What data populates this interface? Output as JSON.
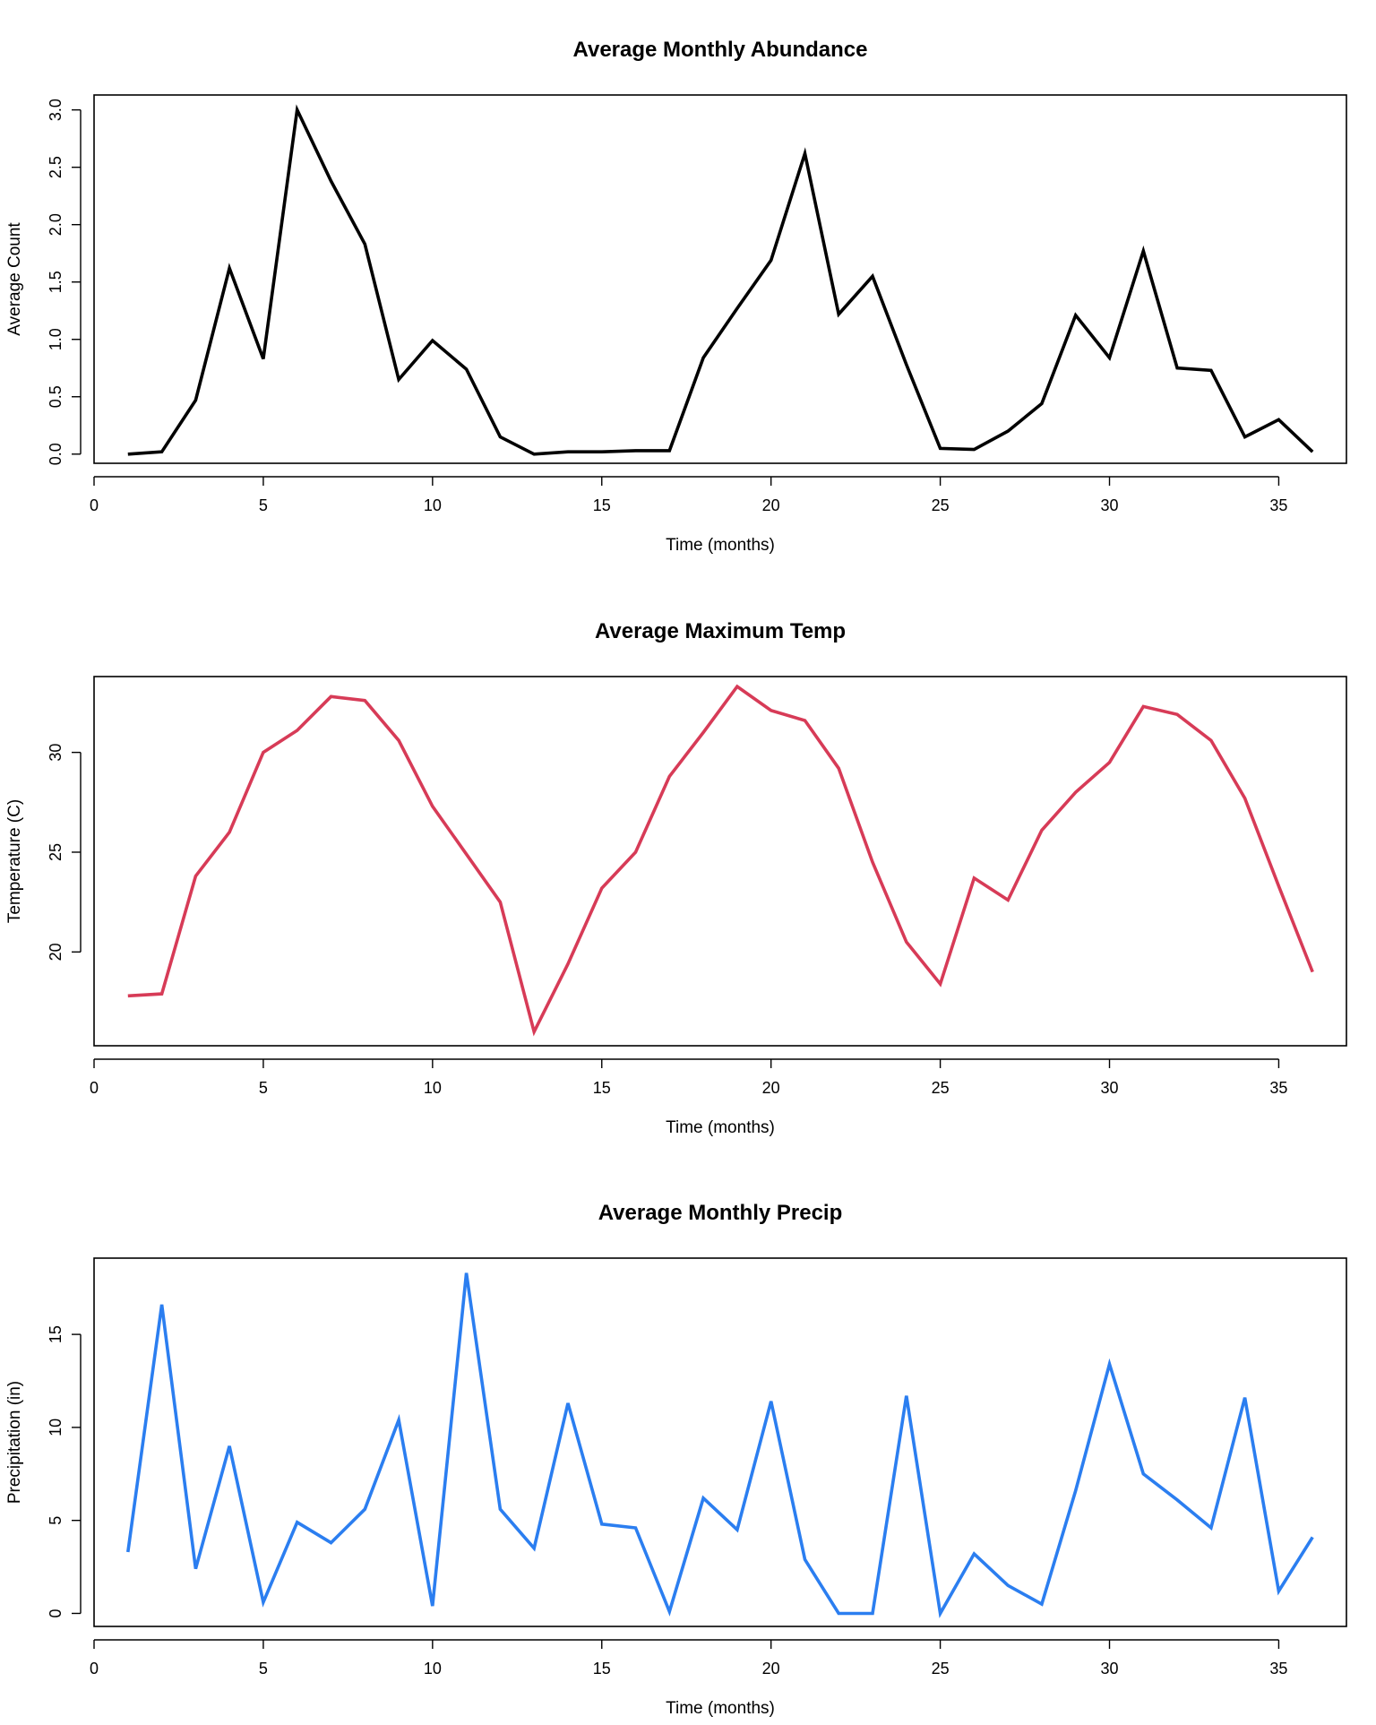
{
  "chart_data": [
    {
      "type": "line",
      "title": "Average Monthly Abundance",
      "xlabel": "Time (months)",
      "ylabel": "Average Count",
      "color": "#000000",
      "xlim": [
        0,
        37
      ],
      "ylim": [
        -0.08,
        3.13
      ],
      "xticks": [
        0,
        5,
        10,
        15,
        20,
        25,
        30,
        35
      ],
      "yticks": [
        0.0,
        0.5,
        1.0,
        1.5,
        2.0,
        2.5,
        3.0
      ],
      "ytick_labels": [
        "0.0",
        "0.5",
        "1.0",
        "1.5",
        "2.0",
        "2.5",
        "3.0"
      ],
      "ytick_rotated": true,
      "x": [
        1,
        2,
        3,
        4,
        5,
        6,
        7,
        8,
        9,
        10,
        11,
        12,
        13,
        14,
        15,
        16,
        17,
        18,
        19,
        20,
        21,
        22,
        23,
        24,
        25,
        26,
        27,
        28,
        29,
        30,
        31,
        32,
        33,
        34,
        35,
        36
      ],
      "y": [
        0.0,
        0.02,
        0.47,
        1.62,
        0.83,
        3.0,
        2.38,
        1.83,
        0.65,
        0.99,
        0.74,
        0.15,
        0.0,
        0.02,
        0.02,
        0.03,
        0.03,
        0.84,
        1.27,
        1.69,
        2.62,
        1.22,
        1.55,
        0.78,
        0.05,
        0.04,
        0.2,
        0.44,
        1.21,
        0.84,
        1.77,
        0.75,
        0.73,
        0.15,
        0.3,
        0.02
      ]
    },
    {
      "type": "line",
      "title": "Average Maximum Temp",
      "xlabel": "Time (months)",
      "ylabel": "Temperature (C)",
      "color": "#d73b57",
      "xlim": [
        0,
        37
      ],
      "ylim": [
        15.3,
        33.8
      ],
      "xticks": [
        0,
        5,
        10,
        15,
        20,
        25,
        30,
        35
      ],
      "yticks": [
        20,
        25,
        30
      ],
      "ytick_labels": [
        "20",
        "25",
        "30"
      ],
      "ytick_rotated": true,
      "x": [
        1,
        2,
        3,
        4,
        5,
        6,
        7,
        8,
        9,
        10,
        11,
        12,
        13,
        14,
        15,
        16,
        17,
        18,
        19,
        20,
        21,
        22,
        23,
        24,
        25,
        26,
        27,
        28,
        29,
        30,
        31,
        32,
        33,
        34,
        35,
        36
      ],
      "y": [
        17.8,
        17.9,
        23.8,
        26.0,
        30.0,
        31.1,
        32.8,
        32.6,
        30.6,
        27.3,
        24.9,
        22.5,
        16.0,
        19.4,
        23.2,
        25.0,
        28.8,
        31.0,
        33.3,
        32.1,
        31.6,
        29.2,
        24.5,
        20.5,
        18.4,
        23.7,
        22.6,
        26.1,
        28.0,
        29.5,
        32.3,
        31.9,
        30.6,
        27.7,
        23.3,
        19.0
      ]
    },
    {
      "type": "line",
      "title": "Average Monthly Precip",
      "xlabel": "Time (months)",
      "ylabel": "Precipitation (in)",
      "color": "#2b7ef0",
      "xlim": [
        0,
        37
      ],
      "ylim": [
        -0.7,
        19.1
      ],
      "xticks": [
        0,
        5,
        10,
        15,
        20,
        25,
        30,
        35
      ],
      "yticks": [
        0,
        5,
        10,
        15
      ],
      "ytick_labels": [
        "0",
        "5",
        "10",
        "15"
      ],
      "ytick_rotated": true,
      "x": [
        1,
        2,
        3,
        4,
        5,
        6,
        7,
        8,
        9,
        10,
        11,
        12,
        13,
        14,
        15,
        16,
        17,
        18,
        19,
        20,
        21,
        22,
        23,
        24,
        25,
        26,
        27,
        28,
        29,
        30,
        31,
        32,
        33,
        34,
        35,
        36
      ],
      "y": [
        3.3,
        16.6,
        2.4,
        9.0,
        0.6,
        4.9,
        3.8,
        5.6,
        10.4,
        0.4,
        18.3,
        5.6,
        3.5,
        11.3,
        4.8,
        4.6,
        0.1,
        6.2,
        4.5,
        11.4,
        2.9,
        0.0,
        0.0,
        11.7,
        0.0,
        3.2,
        1.5,
        0.5,
        6.6,
        13.4,
        7.5,
        6.1,
        4.6,
        11.6,
        1.2,
        4.1
      ]
    }
  ]
}
